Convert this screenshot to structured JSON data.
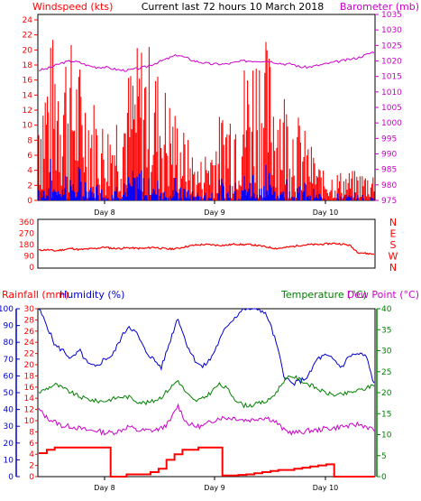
{
  "chart_data": [
    {
      "type": "line",
      "title": "Current last 72 hours 10 March 2018",
      "left_axis_label": "Windspeed (kts)",
      "right_axis_label": "Barometer (mb)",
      "left_ticks": [
        "0",
        "2",
        "4",
        "6",
        "8",
        "10",
        "12",
        "14",
        "16",
        "18",
        "20",
        "22",
        "24"
      ],
      "right_ticks": [
        "975",
        "980",
        "985",
        "990",
        "995",
        "1000",
        "1005",
        "1010",
        "1015",
        "1020",
        "1025",
        "1030",
        "1035"
      ],
      "left_range": [
        0,
        24
      ],
      "right_range": [
        975,
        1035
      ],
      "x_tick_labels": [
        "Day 8",
        "Day 9",
        "Day 10"
      ],
      "colors": {
        "wind": "#ff0000",
        "gust": "#0000ff",
        "barometer": "#cc00cc"
      },
      "series": [
        {
          "color_key": "barometer",
          "values": [
            1017,
            1017.5,
            1018.5,
            1019.5,
            1020,
            1019.5,
            1018.5,
            1018,
            1018,
            1017.5,
            1017,
            1017,
            1017.5,
            1018,
            1019,
            1020,
            1021,
            1022,
            1021,
            1020,
            1019.5,
            1019,
            1019,
            1019,
            1019.5,
            1020,
            1020,
            1020,
            1020,
            1019.5,
            1019,
            1019,
            1018,
            1018,
            1018.5,
            1019,
            1019.5,
            1020,
            1020.5,
            1021,
            1022,
            1023
          ]
        }
      ]
    },
    {
      "type": "line",
      "left_ticks": [
        "0",
        "90",
        "180",
        "270",
        "360"
      ],
      "right_ticks": [
        "N",
        "W",
        "S",
        "E",
        "N"
      ],
      "left_range": [
        0,
        360
      ],
      "colors": {
        "direction": "#ff0000"
      },
      "series": [
        {
          "color_key": "direction",
          "values": [
            135,
            140,
            130,
            140,
            150,
            140,
            145,
            150,
            160,
            150,
            150,
            155,
            150,
            150,
            160,
            150,
            145,
            150,
            165,
            175,
            180,
            180,
            175,
            175,
            185,
            180,
            180,
            170,
            160,
            150,
            155,
            165,
            175,
            180,
            180,
            185,
            190,
            185,
            175,
            120,
            110,
            105
          ]
        }
      ]
    },
    {
      "type": "line",
      "left_axis_label": "Rainfall (mm)",
      "second_left_label": "Humidity (%)",
      "temp_label": "Temperature (°C)",
      "dew_label": "Dew Point (°C)",
      "rain_ticks": [
        "0",
        "2",
        "4",
        "6",
        "8",
        "10",
        "12",
        "14",
        "16",
        "18",
        "20",
        "22",
        "24",
        "26",
        "28",
        "30"
      ],
      "humidity_ticks": [
        "0",
        "10",
        "20",
        "30",
        "40",
        "50",
        "60",
        "70",
        "80",
        "90",
        "100"
      ],
      "temp_ticks": [
        "0",
        "5",
        "10",
        "15",
        "20",
        "25",
        "30",
        "35",
        "40"
      ],
      "rain_range": [
        0,
        30
      ],
      "humidity_range": [
        0,
        100
      ],
      "temp_range": [
        0,
        40
      ],
      "x_tick_labels": [
        "Day 8",
        "Day 9",
        "Day 10"
      ],
      "colors": {
        "humidity": "#0000cc",
        "temperature": "#008000",
        "dewpoint": "#cc00cc",
        "rain": "#ff0000"
      },
      "series": [
        {
          "color_key": "humidity",
          "values": [
            100,
            90,
            78,
            75,
            70,
            75,
            67,
            65,
            70,
            72,
            82,
            90,
            85,
            75,
            70,
            65,
            80,
            95,
            80,
            70,
            65,
            70,
            80,
            90,
            95,
            100,
            100,
            100,
            95,
            80,
            60,
            55,
            57,
            60,
            70,
            72,
            70,
            65,
            72,
            73,
            72,
            55
          ]
        },
        {
          "color_key": "temperature",
          "values": [
            20,
            21,
            22,
            21,
            20,
            19,
            18.5,
            18,
            18,
            18.5,
            19,
            19,
            18,
            17.5,
            18,
            19,
            21,
            23,
            20,
            18,
            18.5,
            20,
            22,
            21,
            18.5,
            17,
            17,
            17.5,
            18,
            20,
            23,
            24,
            23,
            22,
            21,
            20,
            19.5,
            19.5,
            20,
            20.5,
            21,
            22
          ]
        },
        {
          "color_key": "dewpoint",
          "values": [
            16,
            14,
            13,
            12,
            12,
            11.5,
            11,
            11,
            10.5,
            10.5,
            11,
            12,
            11,
            11,
            11,
            11.5,
            13,
            17,
            13,
            12,
            12,
            13,
            14,
            14,
            14,
            13.5,
            13.5,
            14,
            14,
            13,
            11,
            10.5,
            10.5,
            11,
            11,
            11.5,
            11.5,
            12,
            12,
            12.5,
            12,
            11
          ]
        },
        {
          "color_key": "rain",
          "values": [
            4.2,
            4.8,
            5.2,
            5.2,
            5.2,
            5.2,
            5.2,
            5.2,
            5.2,
            0,
            0,
            0.4,
            0.4,
            0.4,
            0.8,
            1.4,
            3,
            4,
            4.8,
            4.8,
            5.2,
            5.2,
            5.2,
            0.2,
            0.2,
            0.3,
            0.4,
            0.6,
            0.8,
            1,
            1.2,
            1.2,
            1.4,
            1.6,
            1.8,
            2,
            2.2,
            0,
            0,
            0,
            0,
            0
          ]
        }
      ]
    }
  ]
}
